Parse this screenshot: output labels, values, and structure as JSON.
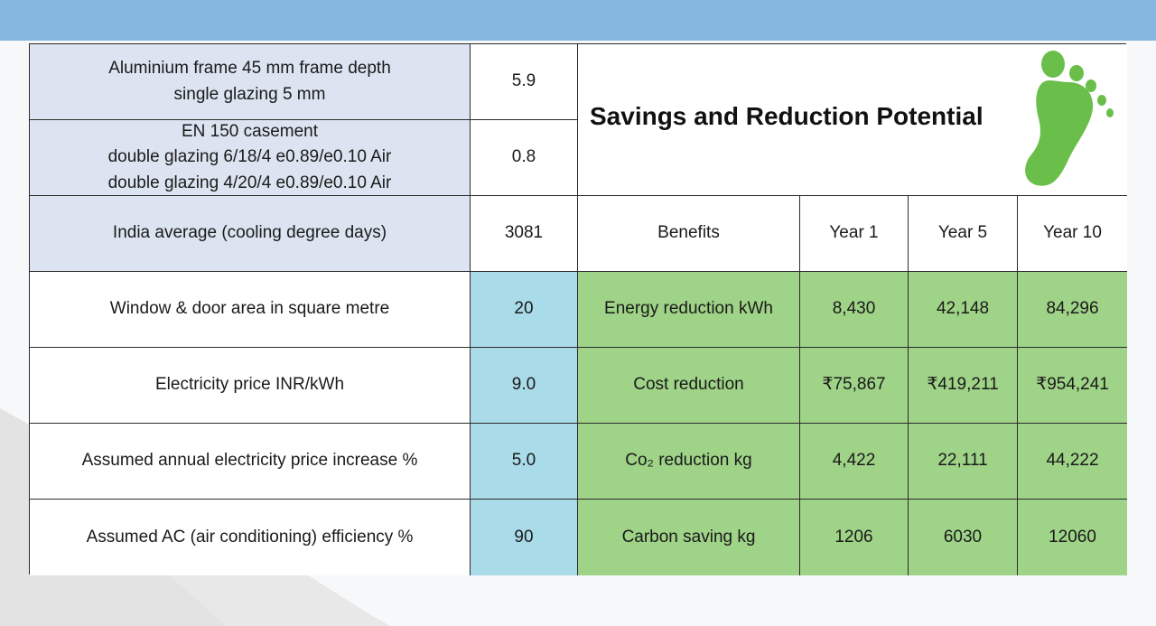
{
  "title": "Savings and Reduction Potential",
  "icon": "footprint-icon",
  "colors": {
    "header_bar": "#86b7e0",
    "parameter_cell": "#dbe4f0",
    "input_cell": "#a9dbe8",
    "result_cell": "#9fd387",
    "footprint": "#6abf4b"
  },
  "parameters": {
    "aluminium_frame": {
      "lines": [
        "Aluminium frame 45 mm frame depth",
        "single glazing 5 mm"
      ],
      "value": "5.9"
    },
    "en150": {
      "lines": [
        "EN 150 casement",
        "double glazing 6/18/4 e0.89/e0.10 Air",
        "double glazing 4/20/4 e0.89/e0.10 Air"
      ],
      "value": "0.8"
    },
    "india_average": {
      "label": "India average  (cooling degree days)",
      "value": "3081"
    },
    "window_area": {
      "label": "Window & door area in square metre",
      "value": "20"
    },
    "electricity_price": {
      "label": "Electricity price INR/kWh",
      "value": "9.0"
    },
    "price_increase": {
      "label": "Assumed annual electricity price increase %",
      "value": "5.0"
    },
    "ac_efficiency": {
      "label": "Assumed AC (air conditioning) efficiency %",
      "value": "90"
    }
  },
  "benefits": {
    "headers": [
      "Benefits",
      "Year 1",
      "Year 5",
      "Year 10"
    ],
    "rows": [
      {
        "label": "Energy reduction kWh",
        "values": [
          "8,430",
          "42,148",
          "84,296"
        ]
      },
      {
        "label": "Cost reduction",
        "values": [
          "₹75,867",
          "₹419,211",
          "₹954,241"
        ]
      },
      {
        "label": "Co₂ reduction kg",
        "values": [
          "4,422",
          "22,111",
          "44,222"
        ]
      },
      {
        "label": "Carbon saving kg",
        "values": [
          "1206",
          "6030",
          "12060"
        ]
      }
    ]
  }
}
